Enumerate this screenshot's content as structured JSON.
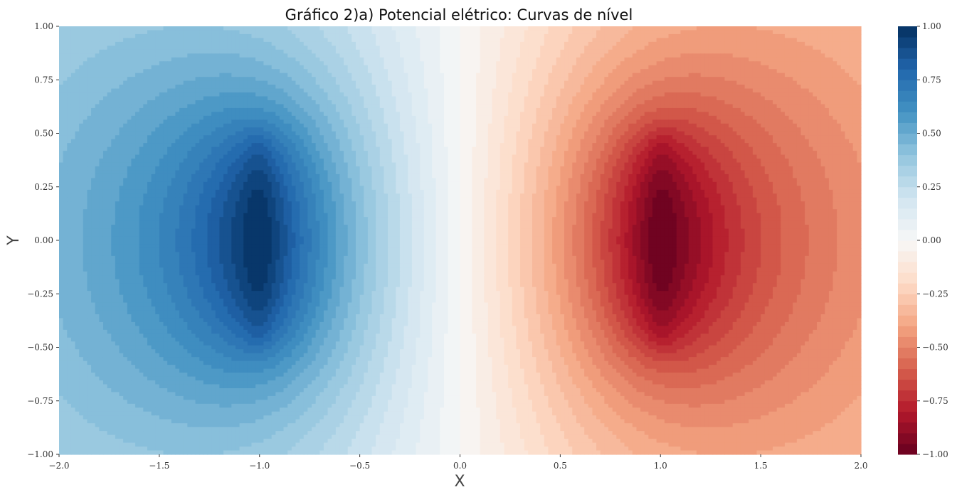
{
  "chart_data": {
    "type": "contourf",
    "title": "Gráfico 2)a) Potencial elétrico: Curvas de nível",
    "xlabel": "X",
    "ylabel": "Y",
    "xlim": [
      -2.0,
      2.0
    ],
    "ylim": [
      -1.0,
      1.0
    ],
    "xticks": [
      -2.0,
      -1.5,
      -1.0,
      -0.5,
      0.0,
      0.5,
      1.0,
      1.5,
      2.0
    ],
    "xtick_labels": [
      "−2.0",
      "−1.5",
      "−1.0",
      "−0.5",
      "0.0",
      "0.5",
      "1.0",
      "1.5",
      "2.0"
    ],
    "yticks": [
      -1.0,
      -0.75,
      -0.5,
      -0.25,
      0.0,
      0.25,
      0.5,
      0.75,
      1.0
    ],
    "ytick_labels": [
      "−1.00",
      "−0.75",
      "−0.50",
      "−0.25",
      "0.00",
      "0.25",
      "0.50",
      "0.75",
      "1.00"
    ],
    "colormap": "RdBu",
    "levels": 40,
    "sources": [
      {
        "x": -1.0,
        "y_range": [
          -0.5,
          0.5
        ],
        "value": 1.0
      },
      {
        "x": 1.0,
        "y_range": [
          -0.5,
          0.5
        ],
        "value": -1.0
      }
    ],
    "colorbar": {
      "range": [
        -1.0,
        1.0
      ],
      "ticks": [
        -1.0,
        -0.75,
        -0.5,
        -0.25,
        0.0,
        0.25,
        0.5,
        0.75,
        1.0
      ],
      "tick_labels": [
        "−1.00",
        "−0.75",
        "−0.50",
        "−0.25",
        "0.00",
        "0.25",
        "0.50",
        "0.75",
        "1.00"
      ]
    },
    "grid": false
  }
}
